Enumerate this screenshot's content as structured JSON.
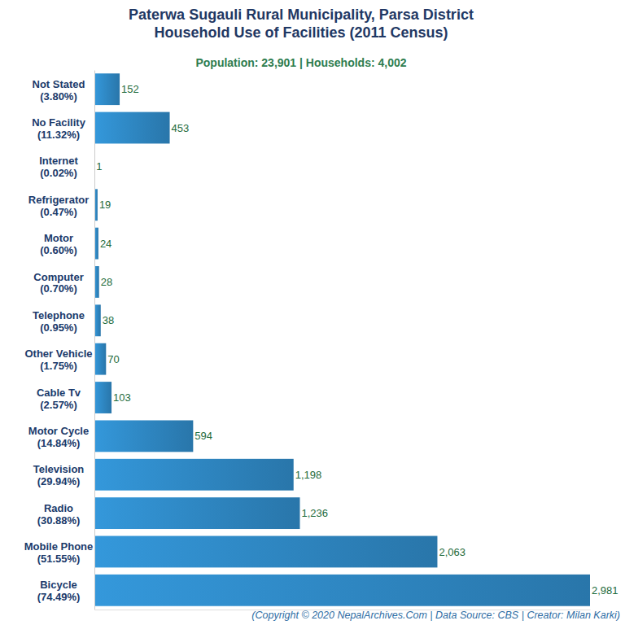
{
  "chart_data": {
    "type": "bar",
    "orientation": "horizontal",
    "title": [
      "Paterwa Sugauli Rural Municipality, Parsa District",
      "Household Use of Facilities (2011 Census)"
    ],
    "subtitle": "Population: 23,901 | Households: 4,002",
    "source": "(Copyright © 2020 NepalArchives.Com | Data Source: CBS | Creator: Milan Karki)",
    "categories": [
      "Not Stated",
      "No Facility",
      "Internet",
      "Refrigerator",
      "Motor",
      "Computer",
      "Telephone",
      "Other Vehicle",
      "Cable Tv",
      "Motor Cycle",
      "Television",
      "Radio",
      "Mobile Phone",
      "Bicycle"
    ],
    "percent_labels": [
      "(3.80%)",
      "(11.32%)",
      "(0.02%)",
      "(0.47%)",
      "(0.60%)",
      "(0.70%)",
      "(0.95%)",
      "(1.75%)",
      "(2.57%)",
      "(14.84%)",
      "(29.94%)",
      "(30.88%)",
      "(51.55%)",
      "(74.49%)"
    ],
    "values": [
      152,
      453,
      1,
      19,
      24,
      28,
      38,
      70,
      103,
      594,
      1198,
      1236,
      2063,
      2981
    ],
    "value_labels": [
      "152",
      "453",
      "1",
      "19",
      "24",
      "28",
      "38",
      "70",
      "103",
      "594",
      "1,198",
      "1,236",
      "2,063",
      "2,981"
    ],
    "color": "#2e86c1",
    "xlim": [
      0,
      2981
    ],
    "xticks": [],
    "grid": false,
    "data_labels": true,
    "tick_labels": "y"
  }
}
